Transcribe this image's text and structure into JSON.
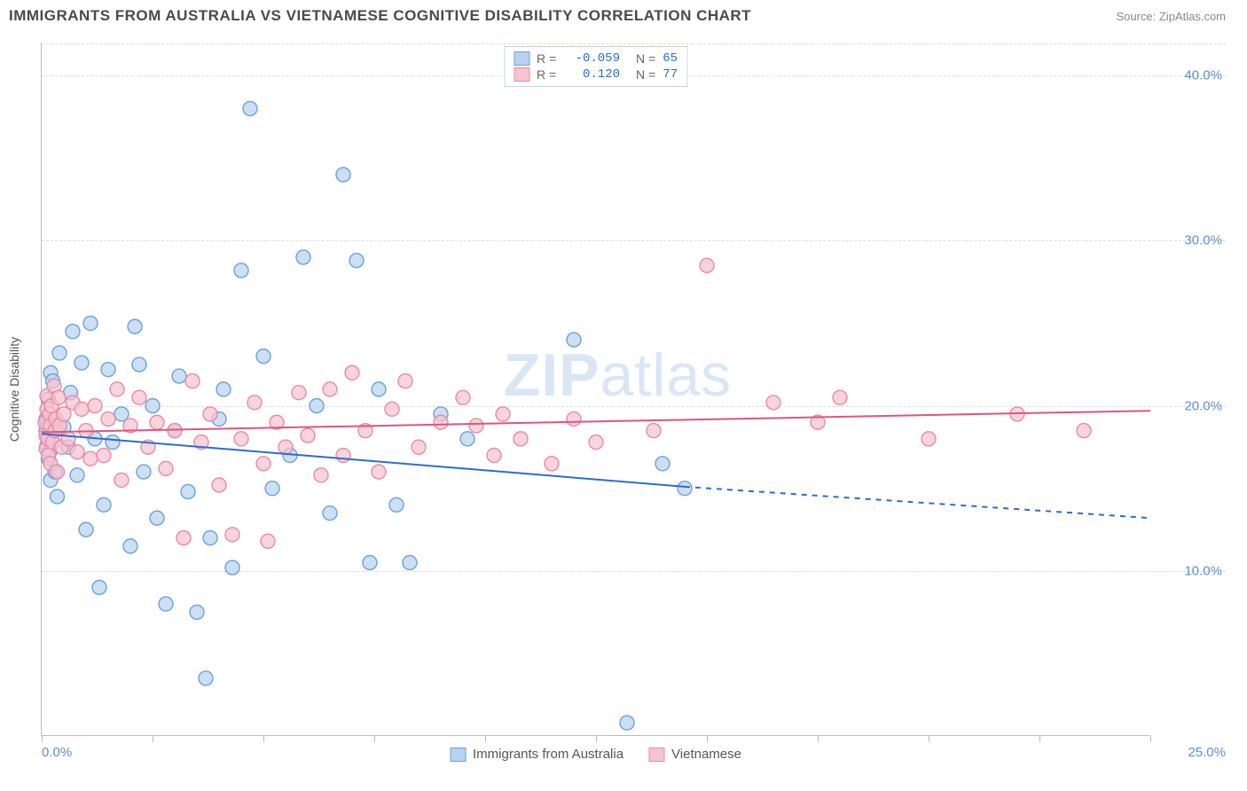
{
  "header": {
    "title": "IMMIGRANTS FROM AUSTRALIA VS VIETNAMESE COGNITIVE DISABILITY CORRELATION CHART",
    "source_label": "Source: ZipAtlas.com"
  },
  "chart": {
    "type": "scatter",
    "ylabel": "Cognitive Disability",
    "watermark_bold": "ZIP",
    "watermark_light": "atlas",
    "x_domain": [
      0,
      25
    ],
    "y_domain": [
      0,
      42
    ],
    "x_ticks": [
      0,
      2.5,
      5,
      7.5,
      10,
      12.5,
      15,
      17.5,
      20,
      22.5,
      25
    ],
    "x_tick_labels": {
      "start": "0.0%",
      "end": "25.0%"
    },
    "y_gridlines": [
      10,
      20,
      30,
      40
    ],
    "y_tick_labels": [
      "10.0%",
      "20.0%",
      "30.0%",
      "40.0%"
    ],
    "background_color": "#ffffff",
    "grid_color": "#dddddd",
    "axis_color": "#bbbbbb",
    "tick_label_color": "#5a8fd6",
    "series": [
      {
        "name": "Immigrants from Australia",
        "marker_fill": "#b9d3ef",
        "marker_stroke": "#6aa1df",
        "marker_opacity": 0.72,
        "marker_radius": 8,
        "line_color": "#2a6dd0",
        "line_width": 2,
        "R": "-0.059",
        "N": "65",
        "trend": {
          "x1": 0,
          "y1": 18.3,
          "x2": 14.5,
          "y2": 15.1,
          "dashed_to_x": 25,
          "dashed_to_y": 13.2
        },
        "points": [
          [
            0.1,
            18.5
          ],
          [
            0.1,
            19.2
          ],
          [
            0.12,
            17.6
          ],
          [
            0.13,
            18.9
          ],
          [
            0.15,
            16.8
          ],
          [
            0.15,
            20.4
          ],
          [
            0.18,
            17.2
          ],
          [
            0.2,
            15.5
          ],
          [
            0.2,
            22.0
          ],
          [
            0.22,
            18.0
          ],
          [
            0.25,
            21.5
          ],
          [
            0.3,
            19.0
          ],
          [
            0.3,
            16.0
          ],
          [
            0.35,
            14.5
          ],
          [
            0.4,
            23.2
          ],
          [
            0.5,
            18.7
          ],
          [
            0.6,
            17.5
          ],
          [
            0.65,
            20.8
          ],
          [
            0.7,
            24.5
          ],
          [
            0.8,
            15.8
          ],
          [
            0.9,
            22.6
          ],
          [
            1.0,
            12.5
          ],
          [
            1.1,
            25.0
          ],
          [
            1.2,
            18.0
          ],
          [
            1.3,
            9.0
          ],
          [
            1.4,
            14.0
          ],
          [
            1.5,
            22.2
          ],
          [
            1.6,
            17.8
          ],
          [
            1.8,
            19.5
          ],
          [
            2.0,
            11.5
          ],
          [
            2.1,
            24.8
          ],
          [
            2.2,
            22.5
          ],
          [
            2.3,
            16.0
          ],
          [
            2.5,
            20.0
          ],
          [
            2.6,
            13.2
          ],
          [
            2.8,
            8.0
          ],
          [
            3.0,
            18.5
          ],
          [
            3.1,
            21.8
          ],
          [
            3.3,
            14.8
          ],
          [
            3.5,
            7.5
          ],
          [
            3.7,
            3.5
          ],
          [
            3.8,
            12.0
          ],
          [
            4.0,
            19.2
          ],
          [
            4.1,
            21.0
          ],
          [
            4.3,
            10.2
          ],
          [
            4.5,
            28.2
          ],
          [
            4.7,
            38.0
          ],
          [
            5.0,
            23.0
          ],
          [
            5.2,
            15.0
          ],
          [
            5.6,
            17.0
          ],
          [
            5.9,
            29.0
          ],
          [
            6.2,
            20.0
          ],
          [
            6.5,
            13.5
          ],
          [
            6.8,
            34.0
          ],
          [
            7.1,
            28.8
          ],
          [
            7.4,
            10.5
          ],
          [
            7.6,
            21.0
          ],
          [
            8.0,
            14.0
          ],
          [
            8.3,
            10.5
          ],
          [
            9.0,
            19.5
          ],
          [
            9.6,
            18.0
          ],
          [
            12.0,
            24.0
          ],
          [
            13.2,
            0.8
          ],
          [
            14.0,
            16.5
          ],
          [
            14.5,
            15.0
          ]
        ]
      },
      {
        "name": "Vietnamese",
        "marker_fill": "#f6c4d0",
        "marker_stroke": "#e88aa4",
        "marker_opacity": 0.72,
        "marker_radius": 8,
        "line_color": "#e0557c",
        "line_width": 2,
        "R": "0.120",
        "N": "77",
        "trend": {
          "x1": 0,
          "y1": 18.4,
          "x2": 25,
          "y2": 19.7
        },
        "points": [
          [
            0.08,
            19.0
          ],
          [
            0.1,
            18.2
          ],
          [
            0.1,
            17.4
          ],
          [
            0.12,
            19.8
          ],
          [
            0.12,
            20.6
          ],
          [
            0.14,
            18.0
          ],
          [
            0.15,
            17.0
          ],
          [
            0.18,
            19.5
          ],
          [
            0.2,
            16.5
          ],
          [
            0.2,
            18.8
          ],
          [
            0.22,
            20.0
          ],
          [
            0.25,
            17.8
          ],
          [
            0.28,
            21.2
          ],
          [
            0.3,
            18.5
          ],
          [
            0.32,
            19.2
          ],
          [
            0.35,
            16.0
          ],
          [
            0.38,
            20.5
          ],
          [
            0.4,
            18.8
          ],
          [
            0.45,
            17.5
          ],
          [
            0.5,
            19.5
          ],
          [
            0.6,
            18.0
          ],
          [
            0.7,
            20.2
          ],
          [
            0.8,
            17.2
          ],
          [
            0.9,
            19.8
          ],
          [
            1.0,
            18.5
          ],
          [
            1.1,
            16.8
          ],
          [
            1.2,
            20.0
          ],
          [
            1.4,
            17.0
          ],
          [
            1.5,
            19.2
          ],
          [
            1.7,
            21.0
          ],
          [
            1.8,
            15.5
          ],
          [
            2.0,
            18.8
          ],
          [
            2.2,
            20.5
          ],
          [
            2.4,
            17.5
          ],
          [
            2.6,
            19.0
          ],
          [
            2.8,
            16.2
          ],
          [
            3.0,
            18.5
          ],
          [
            3.2,
            12.0
          ],
          [
            3.4,
            21.5
          ],
          [
            3.6,
            17.8
          ],
          [
            3.8,
            19.5
          ],
          [
            4.0,
            15.2
          ],
          [
            4.3,
            12.2
          ],
          [
            4.5,
            18.0
          ],
          [
            4.8,
            20.2
          ],
          [
            5.0,
            16.5
          ],
          [
            5.1,
            11.8
          ],
          [
            5.3,
            19.0
          ],
          [
            5.5,
            17.5
          ],
          [
            5.8,
            20.8
          ],
          [
            6.0,
            18.2
          ],
          [
            6.3,
            15.8
          ],
          [
            6.5,
            21.0
          ],
          [
            6.8,
            17.0
          ],
          [
            7.0,
            22.0
          ],
          [
            7.3,
            18.5
          ],
          [
            7.6,
            16.0
          ],
          [
            7.9,
            19.8
          ],
          [
            8.2,
            21.5
          ],
          [
            8.5,
            17.5
          ],
          [
            9.0,
            19.0
          ],
          [
            9.5,
            20.5
          ],
          [
            9.8,
            18.8
          ],
          [
            10.2,
            17.0
          ],
          [
            10.4,
            19.5
          ],
          [
            10.8,
            18.0
          ],
          [
            11.5,
            16.5
          ],
          [
            12.0,
            19.2
          ],
          [
            12.5,
            17.8
          ],
          [
            13.8,
            18.5
          ],
          [
            15.0,
            28.5
          ],
          [
            16.5,
            20.2
          ],
          [
            17.5,
            19.0
          ],
          [
            18.0,
            20.5
          ],
          [
            20.0,
            18.0
          ],
          [
            22.0,
            19.5
          ],
          [
            23.5,
            18.5
          ]
        ]
      }
    ]
  }
}
